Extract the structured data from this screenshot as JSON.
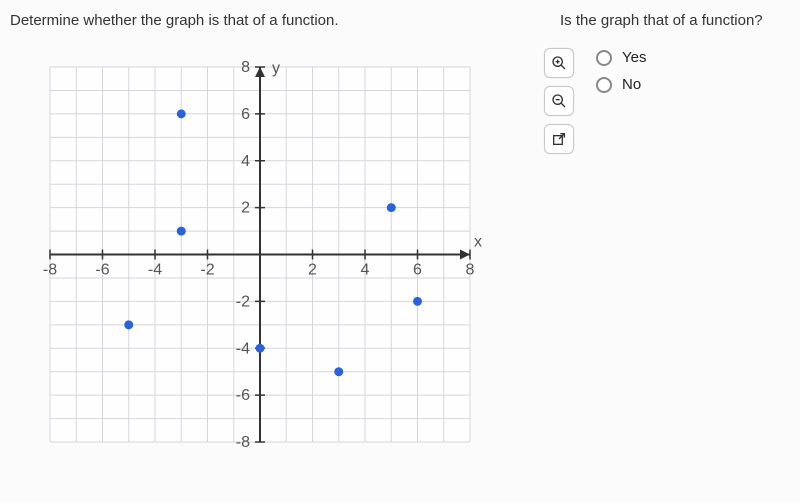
{
  "prompt": "Determine whether the graph is that of a function.",
  "question": "Is the graph that of a function?",
  "options": {
    "yes": "Yes",
    "no": "No"
  },
  "chart": {
    "type": "scatter",
    "xlim": [
      -8,
      8
    ],
    "ylim": [
      -8,
      8
    ],
    "xtick_step": 2,
    "ytick_step": 2,
    "x_axis_label": "x",
    "y_axis_label": "y",
    "background_color": "#fefefe",
    "grid_color": "#d5d5db",
    "axis_color": "#333333",
    "point_color": "#2962d9",
    "point_radius": 4.5,
    "tick_label_color": "#555555",
    "tick_fontsize": 16,
    "x_tick_labels": [
      -8,
      -6,
      -4,
      -2,
      2,
      4,
      6,
      8
    ],
    "y_tick_labels": [
      -8,
      -6,
      -4,
      -2,
      2,
      4,
      6,
      8
    ],
    "points": [
      {
        "x": -3,
        "y": 6
      },
      {
        "x": -3,
        "y": 1
      },
      {
        "x": -5,
        "y": -3
      },
      {
        "x": 0,
        "y": -4
      },
      {
        "x": 3,
        "y": -5
      },
      {
        "x": 5,
        "y": 2
      },
      {
        "x": 6,
        "y": -2
      }
    ]
  },
  "tools": {
    "zoom_in": "zoom-in",
    "zoom_out": "zoom-out",
    "popout": "popout"
  }
}
